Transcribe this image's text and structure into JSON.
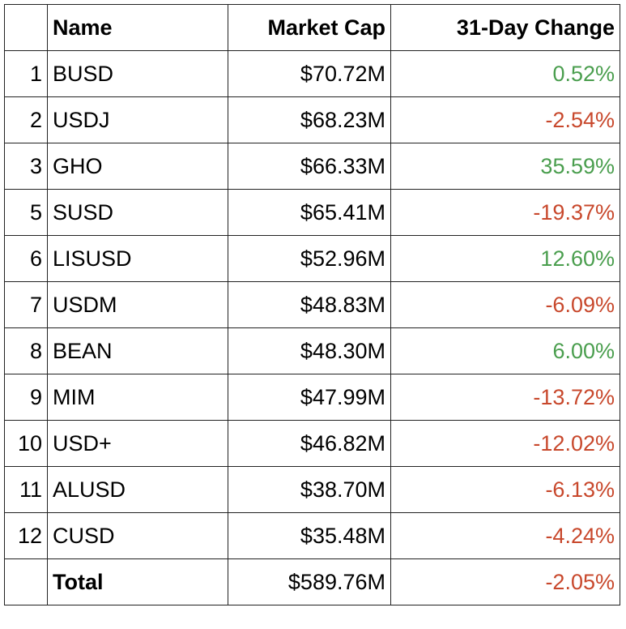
{
  "header": {
    "name": "Name",
    "market_cap": "Market Cap",
    "change": "31-Day Change"
  },
  "rows": [
    [
      "1",
      "BUSD",
      "$70.72M",
      "0.52%"
    ],
    [
      "2",
      "USDJ",
      "$68.23M",
      "-2.54%"
    ],
    [
      "3",
      "GHO",
      "$66.33M",
      "35.59%"
    ],
    [
      "5",
      "SUSD",
      "$65.41M",
      "-19.37%"
    ],
    [
      "6",
      "LISUSD",
      "$52.96M",
      "12.60%"
    ],
    [
      "7",
      "USDM",
      "$48.83M",
      "-6.09%"
    ],
    [
      "8",
      "BEAN",
      "$48.30M",
      "6.00%"
    ],
    [
      "9",
      "MIM",
      "$47.99M",
      "-13.72%"
    ],
    [
      "10",
      "USD+",
      "$46.82M",
      "-12.02%"
    ],
    [
      "11",
      "ALUSD",
      "$38.70M",
      "-6.13%"
    ],
    [
      "12",
      "CUSD",
      "$35.48M",
      "-4.24%"
    ]
  ],
  "total": {
    "label": "Total",
    "market_cap": "$589.76M",
    "change": "-2.05%"
  }
}
